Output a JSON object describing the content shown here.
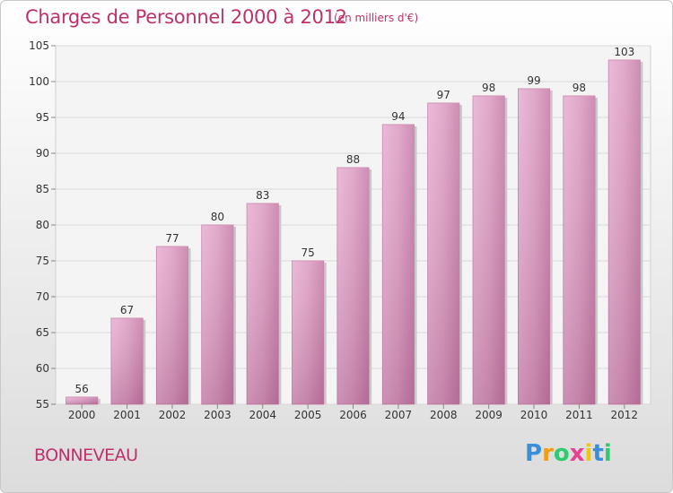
{
  "header": {
    "title": "Charges de Personnel 2000 à 2012",
    "subtitle": "(en milliers d'€)"
  },
  "footer": {
    "town": "BONNEVEAU",
    "logo_letters": [
      "P",
      "r",
      "o",
      "x",
      "i",
      "t",
      "i"
    ],
    "logo_colors": [
      "#3a8fd9",
      "#f39c12",
      "#2ecc71",
      "#e84393",
      "#f1c40f",
      "#3a8fd9",
      "#2ecc71"
    ]
  },
  "chart_data": {
    "type": "bar",
    "categories": [
      "2000",
      "2001",
      "2002",
      "2003",
      "2004",
      "2005",
      "2006",
      "2007",
      "2008",
      "2009",
      "2010",
      "2011",
      "2012"
    ],
    "values": [
      56,
      67,
      77,
      80,
      83,
      75,
      88,
      94,
      97,
      98,
      99,
      98,
      103
    ],
    "ylim": [
      55,
      105
    ],
    "yticks": [
      55,
      60,
      65,
      70,
      75,
      80,
      85,
      90,
      95,
      100,
      105
    ],
    "grid": true,
    "bar_color": "#d98ab4",
    "bar_color_dark": "#b86e98"
  }
}
